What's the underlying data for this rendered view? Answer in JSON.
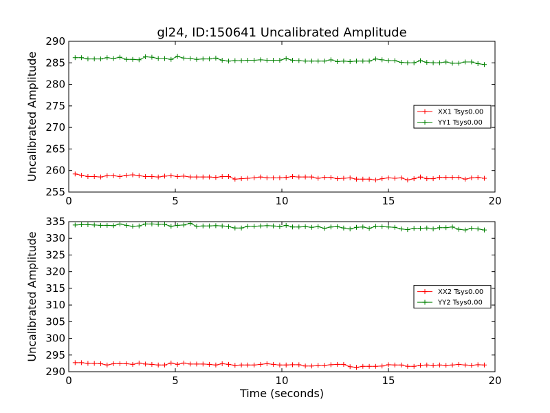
{
  "title": "gl24, ID:150641 Uncalibrated Amplitude",
  "chart_data": [
    {
      "type": "line",
      "ylabel": "Uncalibrated Amplitude",
      "xlabel": "",
      "xlim": [
        0,
        20
      ],
      "ylim": [
        255,
        290
      ],
      "xticks": [
        0,
        5,
        10,
        15,
        20
      ],
      "yticks": [
        255,
        260,
        265,
        270,
        275,
        280,
        285,
        290
      ],
      "legend_position": "center-right",
      "x": [
        0.3,
        0.6,
        0.9,
        1.2,
        1.5,
        1.8,
        2.1,
        2.4,
        2.7,
        3.0,
        3.3,
        3.6,
        3.9,
        4.2,
        4.5,
        4.8,
        5.1,
        5.4,
        5.7,
        6.0,
        6.3,
        6.6,
        6.9,
        7.2,
        7.5,
        7.8,
        8.1,
        8.4,
        8.7,
        9.0,
        9.3,
        9.6,
        9.9,
        10.2,
        10.5,
        10.8,
        11.1,
        11.4,
        11.7,
        12.0,
        12.3,
        12.6,
        12.9,
        13.2,
        13.5,
        13.8,
        14.1,
        14.4,
        14.7,
        15.0,
        15.3,
        15.6,
        15.9,
        16.2,
        16.5,
        16.8,
        17.1,
        17.4,
        17.7,
        18.0,
        18.3,
        18.6,
        18.9,
        19.2,
        19.5
      ],
      "series": [
        {
          "name": "XX1 Tsys0.00",
          "color": "#ff0000",
          "values": [
            259.2,
            258.9,
            258.6,
            258.6,
            258.5,
            258.8,
            258.8,
            258.6,
            258.9,
            259.0,
            258.8,
            258.6,
            258.6,
            258.5,
            258.7,
            258.8,
            258.6,
            258.7,
            258.5,
            258.5,
            258.5,
            258.5,
            258.4,
            258.6,
            258.6,
            258.0,
            258.1,
            258.2,
            258.3,
            258.5,
            258.3,
            258.3,
            258.3,
            258.4,
            258.6,
            258.5,
            258.5,
            258.5,
            258.2,
            258.4,
            258.4,
            258.1,
            258.2,
            258.3,
            258.0,
            258.0,
            258.0,
            257.8,
            258.1,
            258.3,
            258.2,
            258.3,
            257.8,
            258.1,
            258.5,
            258.1,
            258.1,
            258.4,
            258.4,
            258.4,
            258.4,
            258.0,
            258.3,
            258.4,
            258.2
          ]
        },
        {
          "name": "YY1 Tsys0.00",
          "color": "#008000",
          "values": [
            286.2,
            286.2,
            285.9,
            285.9,
            285.9,
            286.2,
            286.0,
            286.3,
            285.8,
            285.8,
            285.7,
            286.4,
            286.3,
            286.0,
            286.0,
            285.8,
            286.5,
            286.1,
            286.0,
            285.8,
            285.9,
            285.9,
            286.1,
            285.6,
            285.4,
            285.5,
            285.5,
            285.6,
            285.6,
            285.7,
            285.6,
            285.6,
            285.6,
            286.0,
            285.6,
            285.5,
            285.4,
            285.4,
            285.4,
            285.4,
            285.7,
            285.3,
            285.4,
            285.3,
            285.4,
            285.4,
            285.4,
            285.9,
            285.7,
            285.5,
            285.5,
            285.1,
            285.0,
            285.0,
            285.5,
            285.1,
            285.0,
            285.0,
            285.2,
            284.9,
            284.9,
            285.2,
            285.2,
            284.8,
            284.6
          ]
        }
      ]
    },
    {
      "type": "line",
      "ylabel": "Uncalibrated Amplitude",
      "xlabel": "Time (seconds)",
      "xlim": [
        0,
        20
      ],
      "ylim": [
        290,
        335
      ],
      "xticks": [
        0,
        5,
        10,
        15,
        20
      ],
      "yticks": [
        290,
        295,
        300,
        305,
        310,
        315,
        320,
        325,
        330,
        335
      ],
      "legend_position": "center-right",
      "x": [
        0.3,
        0.6,
        0.9,
        1.2,
        1.5,
        1.8,
        2.1,
        2.4,
        2.7,
        3.0,
        3.3,
        3.6,
        3.9,
        4.2,
        4.5,
        4.8,
        5.1,
        5.4,
        5.7,
        6.0,
        6.3,
        6.6,
        6.9,
        7.2,
        7.5,
        7.8,
        8.1,
        8.4,
        8.7,
        9.0,
        9.3,
        9.6,
        9.9,
        10.2,
        10.5,
        10.8,
        11.1,
        11.4,
        11.7,
        12.0,
        12.3,
        12.6,
        12.9,
        13.2,
        13.5,
        13.8,
        14.1,
        14.4,
        14.7,
        15.0,
        15.3,
        15.6,
        15.9,
        16.2,
        16.5,
        16.8,
        17.1,
        17.4,
        17.7,
        18.0,
        18.3,
        18.6,
        18.9,
        19.2,
        19.5
      ],
      "series": [
        {
          "name": "XX2 Tsys0.00",
          "color": "#ff0000",
          "values": [
            292.7,
            292.7,
            292.5,
            292.5,
            292.4,
            292.0,
            292.4,
            292.4,
            292.4,
            292.2,
            292.6,
            292.3,
            292.2,
            292.0,
            292.0,
            292.6,
            292.2,
            292.6,
            292.3,
            292.3,
            292.3,
            292.2,
            292.0,
            292.4,
            292.2,
            291.9,
            292.0,
            292.0,
            292.0,
            292.2,
            292.4,
            292.2,
            292.0,
            292.0,
            292.1,
            292.1,
            291.7,
            291.7,
            291.9,
            291.9,
            292.1,
            292.2,
            292.2,
            291.5,
            291.3,
            291.6,
            291.6,
            291.6,
            291.7,
            292.1,
            292.0,
            292.0,
            291.6,
            291.6,
            291.9,
            292.0,
            291.9,
            292.0,
            291.9,
            292.0,
            292.2,
            292.0,
            291.9,
            292.1,
            292.0
          ]
        },
        {
          "name": "YY2 Tsys0.00",
          "color": "#008000",
          "values": [
            334.0,
            334.1,
            334.1,
            334.0,
            333.9,
            333.9,
            333.8,
            334.3,
            333.9,
            333.6,
            333.7,
            334.3,
            334.3,
            334.2,
            334.2,
            333.6,
            333.9,
            334.0,
            334.5,
            333.6,
            333.7,
            333.7,
            333.8,
            333.7,
            333.5,
            333.1,
            333.1,
            333.6,
            333.6,
            333.7,
            333.8,
            333.7,
            333.5,
            333.9,
            333.4,
            333.4,
            333.5,
            333.3,
            333.5,
            333.0,
            333.4,
            333.5,
            333.1,
            332.8,
            333.3,
            333.4,
            333.0,
            333.6,
            333.5,
            333.4,
            333.3,
            332.8,
            332.6,
            333.0,
            333.0,
            333.1,
            332.8,
            333.2,
            333.2,
            333.4,
            332.7,
            332.5,
            333.0,
            332.8,
            332.5
          ]
        }
      ]
    }
  ]
}
